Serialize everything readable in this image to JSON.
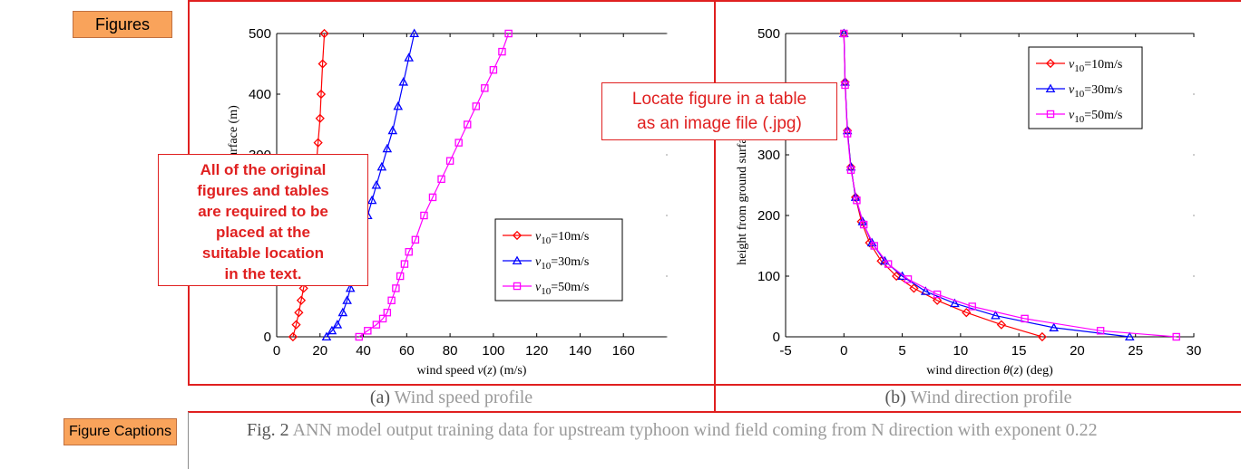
{
  "tags": {
    "figures": "Figures",
    "captions": "Figure Captions"
  },
  "callouts": {
    "left": [
      "All of the original",
      "figures and tables",
      "are required to be",
      "placed at the",
      "suitable location",
      "in the text."
    ],
    "middle": [
      "Locate figure in a table",
      "as an image file (.jpg)"
    ]
  },
  "subcaptions": {
    "a_label": "(a)",
    "a_text": "Wind speed profile",
    "b_label": "(b)",
    "b_text": "Wind direction profile"
  },
  "caption": {
    "label": "Fig. 2",
    "text": "ANN model output training data for upstream typhoon wind field coming from N direction with exponent 0.22"
  },
  "colors": {
    "series_red": "#ff0000",
    "series_blue": "#0000ff",
    "series_magenta": "#ff00ff",
    "accent_red": "#e02020",
    "tag_orange": "#f9a35b"
  },
  "chart_data": [
    {
      "type": "line",
      "xlabel_text": "wind speed ",
      "xlabel_var": "v",
      "xlabel_arg": "z",
      "xlabel_unit": "(m/s)",
      "ylabel": "height from ground surface (m)",
      "xlim": [
        0,
        180
      ],
      "ylim": [
        0,
        500
      ],
      "xticks": [
        0,
        20,
        40,
        60,
        80,
        100,
        120,
        140,
        160
      ],
      "yticks": [
        0,
        100,
        200,
        300,
        400,
        500
      ],
      "legend_position": "lower-right",
      "legend_prefix": "v",
      "legend_sub": "10",
      "markers": [
        "diamond",
        "triangle",
        "square"
      ],
      "series": [
        {
          "name": "=10m/s",
          "color": "#ff0000",
          "x": [
            7.5,
            9.0,
            10.2,
            11.3,
            12.4,
            13.5,
            14.5,
            15.5,
            16.4,
            17.3,
            18.2,
            19.1,
            20.0,
            20.5,
            21.2,
            22.0
          ],
          "y": [
            0,
            20,
            40,
            60,
            80,
            100,
            130,
            160,
            200,
            240,
            280,
            320,
            360,
            400,
            450,
            500
          ]
        },
        {
          "name": "=30m/s",
          "color": "#0000ff",
          "x": [
            23,
            25.5,
            28,
            30.5,
            32.5,
            34,
            35.5,
            37,
            38.5,
            40,
            42,
            44,
            46,
            48.5,
            51,
            53.5,
            56,
            58.5,
            61,
            63.5
          ],
          "y": [
            0,
            10,
            20,
            40,
            60,
            80,
            100,
            125,
            150,
            175,
            200,
            225,
            250,
            280,
            310,
            340,
            380,
            420,
            460,
            500
          ]
        },
        {
          "name": "=50m/s",
          "color": "#ff00ff",
          "x": [
            38,
            42,
            46,
            49,
            51,
            53,
            55,
            57,
            59,
            61,
            64,
            68,
            72,
            76,
            80,
            84,
            88,
            92,
            96,
            100,
            104,
            107
          ],
          "y": [
            0,
            10,
            20,
            30,
            40,
            60,
            80,
            100,
            120,
            140,
            160,
            200,
            230,
            260,
            290,
            320,
            350,
            380,
            410,
            440,
            470,
            500
          ]
        }
      ]
    },
    {
      "type": "line",
      "xlabel_text": "wind direction ",
      "xlabel_var": "θ",
      "xlabel_arg": "z",
      "xlabel_unit": "(deg)",
      "ylabel": "height from ground surface (m)",
      "xlim": [
        -5,
        30
      ],
      "ylim": [
        0,
        500
      ],
      "xticks": [
        -5,
        0,
        5,
        10,
        15,
        20,
        25,
        30
      ],
      "yticks": [
        0,
        100,
        200,
        300,
        400,
        500
      ],
      "legend_position": "top-right",
      "legend_prefix": "v",
      "legend_sub": "10",
      "markers": [
        "diamond",
        "triangle",
        "square"
      ],
      "series": [
        {
          "name": "=10m/s",
          "color": "#ff0000",
          "x": [
            17,
            13.5,
            10.5,
            8,
            6,
            4.5,
            3.2,
            2.2,
            1.5,
            1.0,
            0.6,
            0.3,
            0.1,
            0
          ],
          "y": [
            0,
            20,
            40,
            60,
            80,
            100,
            125,
            155,
            190,
            230,
            280,
            340,
            420,
            500
          ]
        },
        {
          "name": "=30m/s",
          "color": "#0000ff",
          "x": [
            24.5,
            18,
            13,
            9.5,
            7,
            5,
            3.5,
            2.4,
            1.6,
            1.0,
            0.6,
            0.3,
            0.1,
            0
          ],
          "y": [
            0,
            15,
            35,
            55,
            75,
            100,
            125,
            155,
            190,
            230,
            280,
            340,
            420,
            500
          ]
        },
        {
          "name": "=50m/s",
          "color": "#ff00ff",
          "x": [
            28.5,
            22,
            15.5,
            11,
            8,
            5.5,
            3.8,
            2.6,
            1.7,
            1.1,
            0.6,
            0.3,
            0.1,
            0
          ],
          "y": [
            0,
            10,
            30,
            50,
            70,
            95,
            120,
            150,
            185,
            225,
            275,
            335,
            415,
            500
          ]
        }
      ]
    }
  ]
}
